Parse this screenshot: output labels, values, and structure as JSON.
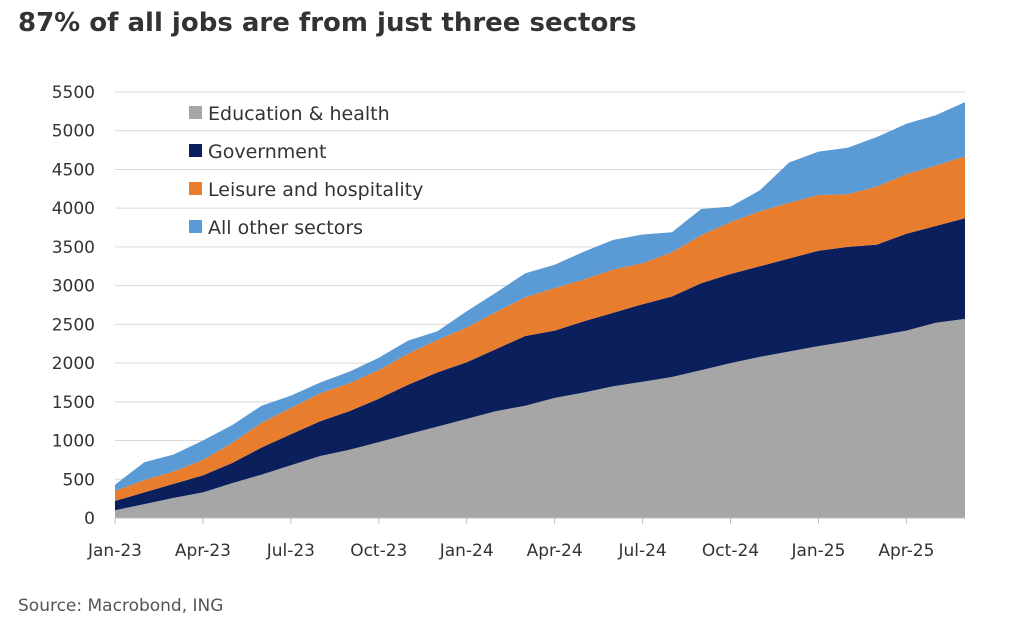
{
  "title": "87% of all jobs are from just three sectors",
  "source": "Source: Macrobond, ING",
  "chart_data": {
    "type": "area",
    "stacked": true,
    "title": "87% of all jobs are from just three sectors",
    "xlabel": "",
    "ylabel": "",
    "ylim": [
      0,
      5500
    ],
    "yticks": [
      0,
      500,
      1000,
      1500,
      2000,
      2500,
      3000,
      3500,
      4000,
      4500,
      5000,
      5500
    ],
    "x": [
      "Jan-23",
      "Feb-23",
      "Mar-23",
      "Apr-23",
      "May-23",
      "Jun-23",
      "Jul-23",
      "Aug-23",
      "Sep-23",
      "Oct-23",
      "Nov-23",
      "Dec-23",
      "Jan-24",
      "Feb-24",
      "Mar-24",
      "Apr-24",
      "May-24",
      "Jun-24",
      "Jul-24",
      "Aug-24",
      "Sep-24",
      "Oct-24",
      "Nov-24",
      "Dec-24",
      "Jan-25",
      "Feb-25",
      "Mar-25",
      "Apr-25",
      "May-25",
      "Jun-25"
    ],
    "xtick_labels": [
      "Jan-23",
      "Apr-23",
      "Jul-23",
      "Oct-23",
      "Jan-24",
      "Apr-24",
      "Jul-24",
      "Oct-24",
      "Jan-25",
      "Apr-25"
    ],
    "grid": "horizontal",
    "legend_position": "top-left",
    "series": [
      {
        "name": "Education & health",
        "color": "#a6a6a6",
        "values": [
          100,
          180,
          260,
          330,
          450,
          560,
          680,
          800,
          880,
          980,
          1080,
          1180,
          1280,
          1380,
          1450,
          1550,
          1620,
          1700,
          1760,
          1820,
          1910,
          2000,
          2080,
          2150,
          2220,
          2280,
          2350,
          2420,
          2520,
          2570
        ]
      },
      {
        "name": "Government",
        "color": "#0b1f5c",
        "values": [
          120,
          150,
          180,
          220,
          260,
          350,
          400,
          450,
          500,
          560,
          640,
          700,
          730,
          800,
          900,
          870,
          920,
          950,
          1000,
          1040,
          1120,
          1150,
          1170,
          1200,
          1230,
          1220,
          1180,
          1250,
          1250,
          1300
        ]
      },
      {
        "name": "Leisure and hospitality",
        "color": "#e87d2e",
        "values": [
          130,
          160,
          160,
          200,
          260,
          320,
          340,
          360,
          360,
          370,
          400,
          420,
          450,
          480,
          500,
          550,
          540,
          560,
          530,
          570,
          620,
          670,
          710,
          720,
          720,
          680,
          750,
          770,
          780,
          800
        ]
      },
      {
        "name": "All other sectors",
        "color": "#5b9bd5",
        "values": [
          80,
          230,
          220,
          250,
          230,
          220,
          160,
          140,
          150,
          160,
          170,
          110,
          210,
          250,
          310,
          300,
          360,
          380,
          370,
          260,
          340,
          200,
          270,
          520,
          560,
          600,
          640,
          650,
          650,
          700
        ]
      }
    ]
  }
}
